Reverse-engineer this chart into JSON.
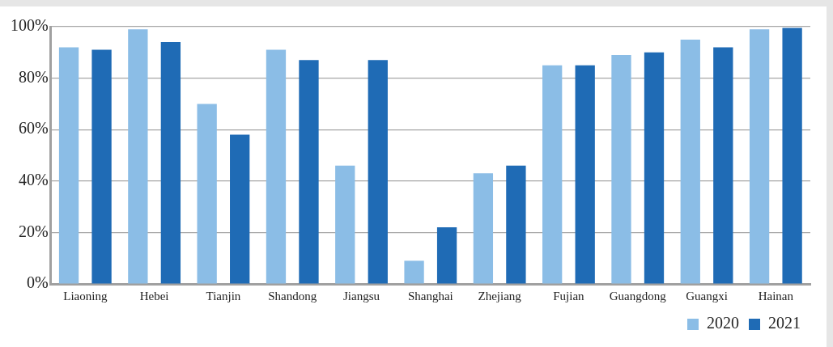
{
  "chart_data": {
    "type": "bar",
    "categories": [
      "Liaoning",
      "Hebei",
      "Tianjin",
      "Shandong",
      "Jiangsu",
      "Shanghai",
      "Zhejiang",
      "Fujian",
      "Guangdong",
      "Guangxi",
      "Hainan"
    ],
    "series": [
      {
        "name": "2020",
        "color": "#8bbde6",
        "values": [
          92,
          99,
          70,
          91,
          46,
          9,
          43,
          85,
          89,
          95,
          99
        ]
      },
      {
        "name": "2021",
        "color": "#1f6bb5",
        "values": [
          91,
          94,
          58,
          87,
          87,
          22,
          46,
          85,
          90,
          92,
          99.5
        ]
      }
    ],
    "ylim": [
      0,
      100
    ],
    "yticks": [
      {
        "value": 0,
        "label": "0%"
      },
      {
        "value": 20,
        "label": "20%"
      },
      {
        "value": 40,
        "label": "40%"
      },
      {
        "value": 60,
        "label": "60%"
      },
      {
        "value": 80,
        "label": "80%"
      },
      {
        "value": 100,
        "label": "100%"
      }
    ],
    "grid": "y",
    "legend": "bottom right"
  }
}
